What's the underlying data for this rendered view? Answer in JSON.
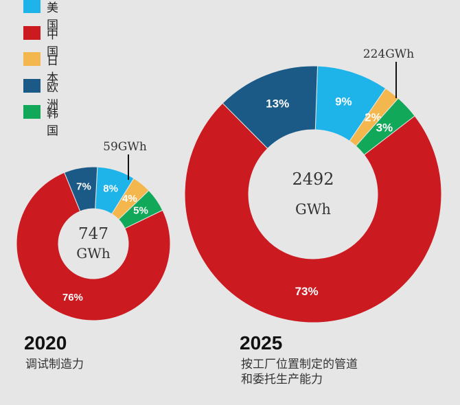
{
  "legend": [
    {
      "label": "美国",
      "color": "#1eb4ea"
    },
    {
      "label": "中国",
      "color": "#cc1a21"
    },
    {
      "label": "日本",
      "color": "#f4b74d"
    },
    {
      "label": "欧洲",
      "color": "#1b5a87"
    },
    {
      "label": "韩国",
      "color": "#12a85a"
    }
  ],
  "chart_data": [
    {
      "type": "pie",
      "year": "2020",
      "center_value": "747",
      "center_unit": "GWh",
      "callout": "59GWh",
      "caption": "调试制造力",
      "slices": [
        {
          "name": "美国",
          "value": 8,
          "label": "8%"
        },
        {
          "name": "日本",
          "value": 4,
          "label": "4%"
        },
        {
          "name": "韩国",
          "value": 5,
          "label": "5%"
        },
        {
          "name": "中国",
          "value": 76,
          "label": "76%"
        },
        {
          "name": "欧洲",
          "value": 7,
          "label": "7%"
        }
      ]
    },
    {
      "type": "pie",
      "year": "2025",
      "center_value": "2492",
      "center_unit": "GWh",
      "callout": "224GWh",
      "caption_lines": [
        "按工厂位置制定的管道",
        "和委托生产能力"
      ],
      "slices": [
        {
          "name": "美国",
          "value": 9,
          "label": "9%"
        },
        {
          "name": "日本",
          "value": 2,
          "label": "2%"
        },
        {
          "name": "韩国",
          "value": 3,
          "label": "3%"
        },
        {
          "name": "中国",
          "value": 73,
          "label": "73%"
        },
        {
          "name": "欧洲",
          "value": 13,
          "label": "13%"
        }
      ]
    }
  ]
}
